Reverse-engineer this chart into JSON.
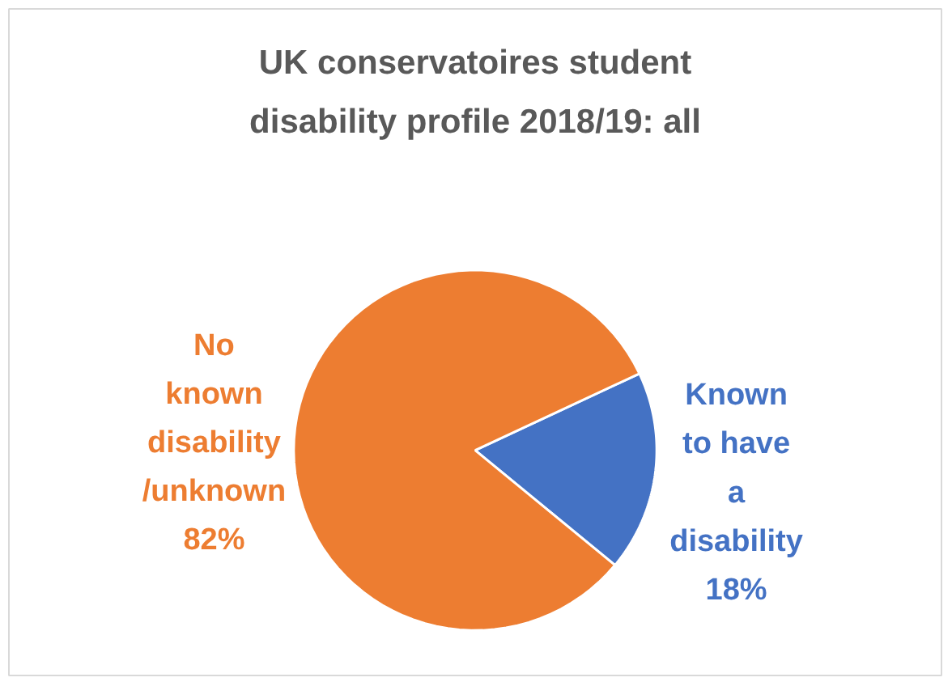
{
  "chart_data": {
    "type": "pie",
    "title": "UK conservatoires student disability profile 2018/19: all",
    "categories": [
      "Known to have a disability",
      "No known disability /unknown"
    ],
    "values": [
      18,
      82
    ],
    "colors": [
      "#4472c4",
      "#ed7d31"
    ],
    "value_labels": [
      "18%",
      "82%"
    ]
  }
}
